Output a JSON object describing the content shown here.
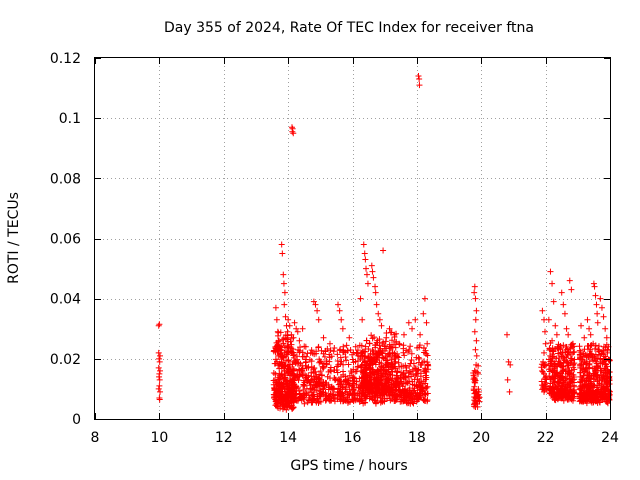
{
  "chart_data": {
    "type": "scatter",
    "title": "Day 355 of 2024, Rate Of TEC Index for receiver ftna",
    "xlabel": "GPS time / hours",
    "ylabel": "ROTI / TECUs",
    "xlim": [
      8,
      24
    ],
    "ylim": [
      0,
      0.12
    ],
    "xticks": [
      8,
      10,
      12,
      14,
      16,
      18,
      20,
      22,
      24
    ],
    "yticks": [
      0,
      0.02,
      0.04,
      0.06,
      0.08,
      0.1,
      0.12
    ],
    "xtick_labels": [
      "8",
      "10",
      "12",
      "14",
      "16",
      "18",
      "20",
      "22",
      "24"
    ],
    "ytick_labels": [
      "0",
      "0.02",
      "0.04",
      "0.06",
      "0.08",
      "0.1",
      "0.12"
    ],
    "grid": true,
    "marker": "+",
    "color": "#ff0000",
    "series": [
      {
        "name": "ROTI",
        "points": [
          [
            9.98,
            0.031
          ],
          [
            10.0,
            0.0315
          ],
          [
            9.98,
            0.022
          ],
          [
            10.02,
            0.021
          ],
          [
            9.99,
            0.02
          ],
          [
            10.01,
            0.019
          ],
          [
            9.98,
            0.017
          ],
          [
            10.02,
            0.016
          ],
          [
            10.0,
            0.015
          ],
          [
            9.99,
            0.014
          ],
          [
            10.01,
            0.013
          ],
          [
            10.0,
            0.011
          ],
          [
            9.98,
            0.01
          ],
          [
            10.02,
            0.009
          ],
          [
            10.0,
            0.007
          ],
          [
            10.01,
            0.0065
          ],
          [
            13.62,
            0.037
          ],
          [
            13.65,
            0.033
          ],
          [
            13.68,
            0.029
          ],
          [
            13.7,
            0.026
          ],
          [
            13.72,
            0.024
          ],
          [
            13.75,
            0.022
          ],
          [
            13.8,
            0.058
          ],
          [
            13.82,
            0.055
          ],
          [
            13.85,
            0.048
          ],
          [
            13.87,
            0.045
          ],
          [
            13.9,
            0.042
          ],
          [
            13.88,
            0.038
          ],
          [
            13.92,
            0.034
          ],
          [
            13.95,
            0.031
          ],
          [
            13.98,
            0.029
          ],
          [
            14.0,
            0.033
          ],
          [
            14.05,
            0.031
          ],
          [
            14.1,
            0.028
          ],
          [
            14.12,
            0.097
          ],
          [
            14.14,
            0.0965
          ],
          [
            14.16,
            0.095
          ],
          [
            14.13,
            0.0955
          ],
          [
            14.2,
            0.032
          ],
          [
            14.25,
            0.03
          ],
          [
            14.3,
            0.029
          ],
          [
            14.35,
            0.026
          ],
          [
            14.45,
            0.03
          ],
          [
            14.55,
            0.024
          ],
          [
            14.7,
            0.022
          ],
          [
            14.8,
            0.039
          ],
          [
            14.85,
            0.038
          ],
          [
            14.9,
            0.036
          ],
          [
            14.95,
            0.033
          ],
          [
            15.1,
            0.027
          ],
          [
            15.3,
            0.025
          ],
          [
            15.55,
            0.038
          ],
          [
            15.6,
            0.036
          ],
          [
            15.65,
            0.033
          ],
          [
            15.7,
            0.03
          ],
          [
            15.9,
            0.027
          ],
          [
            16.1,
            0.024
          ],
          [
            16.25,
            0.04
          ],
          [
            16.3,
            0.033
          ],
          [
            16.35,
            0.058
          ],
          [
            16.38,
            0.055
          ],
          [
            16.4,
            0.053
          ],
          [
            16.42,
            0.05
          ],
          [
            16.45,
            0.048
          ],
          [
            16.48,
            0.045
          ],
          [
            16.6,
            0.051
          ],
          [
            16.62,
            0.049
          ],
          [
            16.65,
            0.047
          ],
          [
            16.7,
            0.044
          ],
          [
            16.72,
            0.042
          ],
          [
            16.75,
            0.038
          ],
          [
            16.8,
            0.035
          ],
          [
            16.85,
            0.033
          ],
          [
            16.9,
            0.031
          ],
          [
            16.95,
            0.056
          ],
          [
            17.05,
            0.027
          ],
          [
            17.15,
            0.03
          ],
          [
            17.3,
            0.028
          ],
          [
            17.45,
            0.025
          ],
          [
            17.6,
            0.028
          ],
          [
            17.75,
            0.032
          ],
          [
            17.85,
            0.03
          ],
          [
            17.95,
            0.033
          ],
          [
            18.05,
            0.114
          ],
          [
            18.07,
            0.113
          ],
          [
            18.08,
            0.111
          ],
          [
            18.1,
            0.028
          ],
          [
            18.2,
            0.035
          ],
          [
            18.25,
            0.04
          ],
          [
            18.3,
            0.032
          ],
          [
            18.32,
            0.025
          ],
          [
            19.78,
            0.042
          ],
          [
            19.8,
            0.044
          ],
          [
            19.82,
            0.04
          ],
          [
            19.85,
            0.036
          ],
          [
            19.83,
            0.033
          ],
          [
            19.8,
            0.029
          ],
          [
            19.85,
            0.026
          ],
          [
            19.82,
            0.023
          ],
          [
            19.84,
            0.018
          ],
          [
            19.86,
            0.021
          ],
          [
            19.9,
            0.015
          ],
          [
            19.81,
            0.012
          ],
          [
            19.85,
            0.009
          ],
          [
            19.83,
            0.007
          ],
          [
            19.86,
            0.005
          ],
          [
            19.82,
            0.004
          ],
          [
            20.8,
            0.028
          ],
          [
            20.85,
            0.019
          ],
          [
            20.9,
            0.018
          ],
          [
            20.82,
            0.013
          ],
          [
            20.88,
            0.009
          ],
          [
            21.9,
            0.036
          ],
          [
            21.95,
            0.033
          ],
          [
            21.98,
            0.029
          ],
          [
            22.0,
            0.025
          ],
          [
            21.95,
            0.022
          ],
          [
            21.92,
            0.019
          ],
          [
            21.95,
            0.015
          ],
          [
            21.98,
            0.012
          ],
          [
            22.0,
            0.011
          ],
          [
            21.95,
            0.009
          ],
          [
            22.15,
            0.049
          ],
          [
            22.2,
            0.045
          ],
          [
            22.25,
            0.039
          ],
          [
            22.1,
            0.033
          ],
          [
            22.3,
            0.031
          ],
          [
            22.35,
            0.028
          ],
          [
            22.2,
            0.026
          ],
          [
            22.4,
            0.024
          ],
          [
            22.5,
            0.042
          ],
          [
            22.55,
            0.038
          ],
          [
            22.6,
            0.035
          ],
          [
            22.65,
            0.03
          ],
          [
            22.7,
            0.028
          ],
          [
            22.75,
            0.046
          ],
          [
            22.8,
            0.043
          ],
          [
            22.85,
            0.025
          ],
          [
            23.1,
            0.031
          ],
          [
            23.2,
            0.027
          ],
          [
            23.3,
            0.033
          ],
          [
            23.35,
            0.03
          ],
          [
            23.4,
            0.028
          ],
          [
            23.5,
            0.045
          ],
          [
            23.52,
            0.044
          ],
          [
            23.55,
            0.041
          ],
          [
            23.58,
            0.038
          ],
          [
            23.6,
            0.035
          ],
          [
            23.62,
            0.032
          ],
          [
            23.7,
            0.04
          ],
          [
            23.75,
            0.037
          ],
          [
            23.8,
            0.034
          ],
          [
            23.85,
            0.03
          ],
          [
            23.9,
            0.027
          ],
          [
            23.95,
            0.024
          ]
        ],
        "dense_bands": [
          {
            "x": [
              13.55,
              18.35
            ],
            "y": [
              0.005,
              0.026
            ],
            "count": 1100
          },
          {
            "x": [
              13.6,
              14.2
            ],
            "y": [
              0.003,
              0.03
            ],
            "count": 220
          },
          {
            "x": [
              16.3,
              17.4
            ],
            "y": [
              0.008,
              0.03
            ],
            "count": 260
          },
          {
            "x": [
              19.75,
              19.95
            ],
            "y": [
              0.004,
              0.02
            ],
            "count": 40
          },
          {
            "x": [
              21.85,
              22.05
            ],
            "y": [
              0.009,
              0.02
            ],
            "count": 25
          },
          {
            "x": [
              22.1,
              22.9
            ],
            "y": [
              0.006,
              0.026
            ],
            "count": 320
          },
          {
            "x": [
              23.05,
              24.0
            ],
            "y": [
              0.005,
              0.026
            ],
            "count": 420
          }
        ]
      }
    ]
  }
}
